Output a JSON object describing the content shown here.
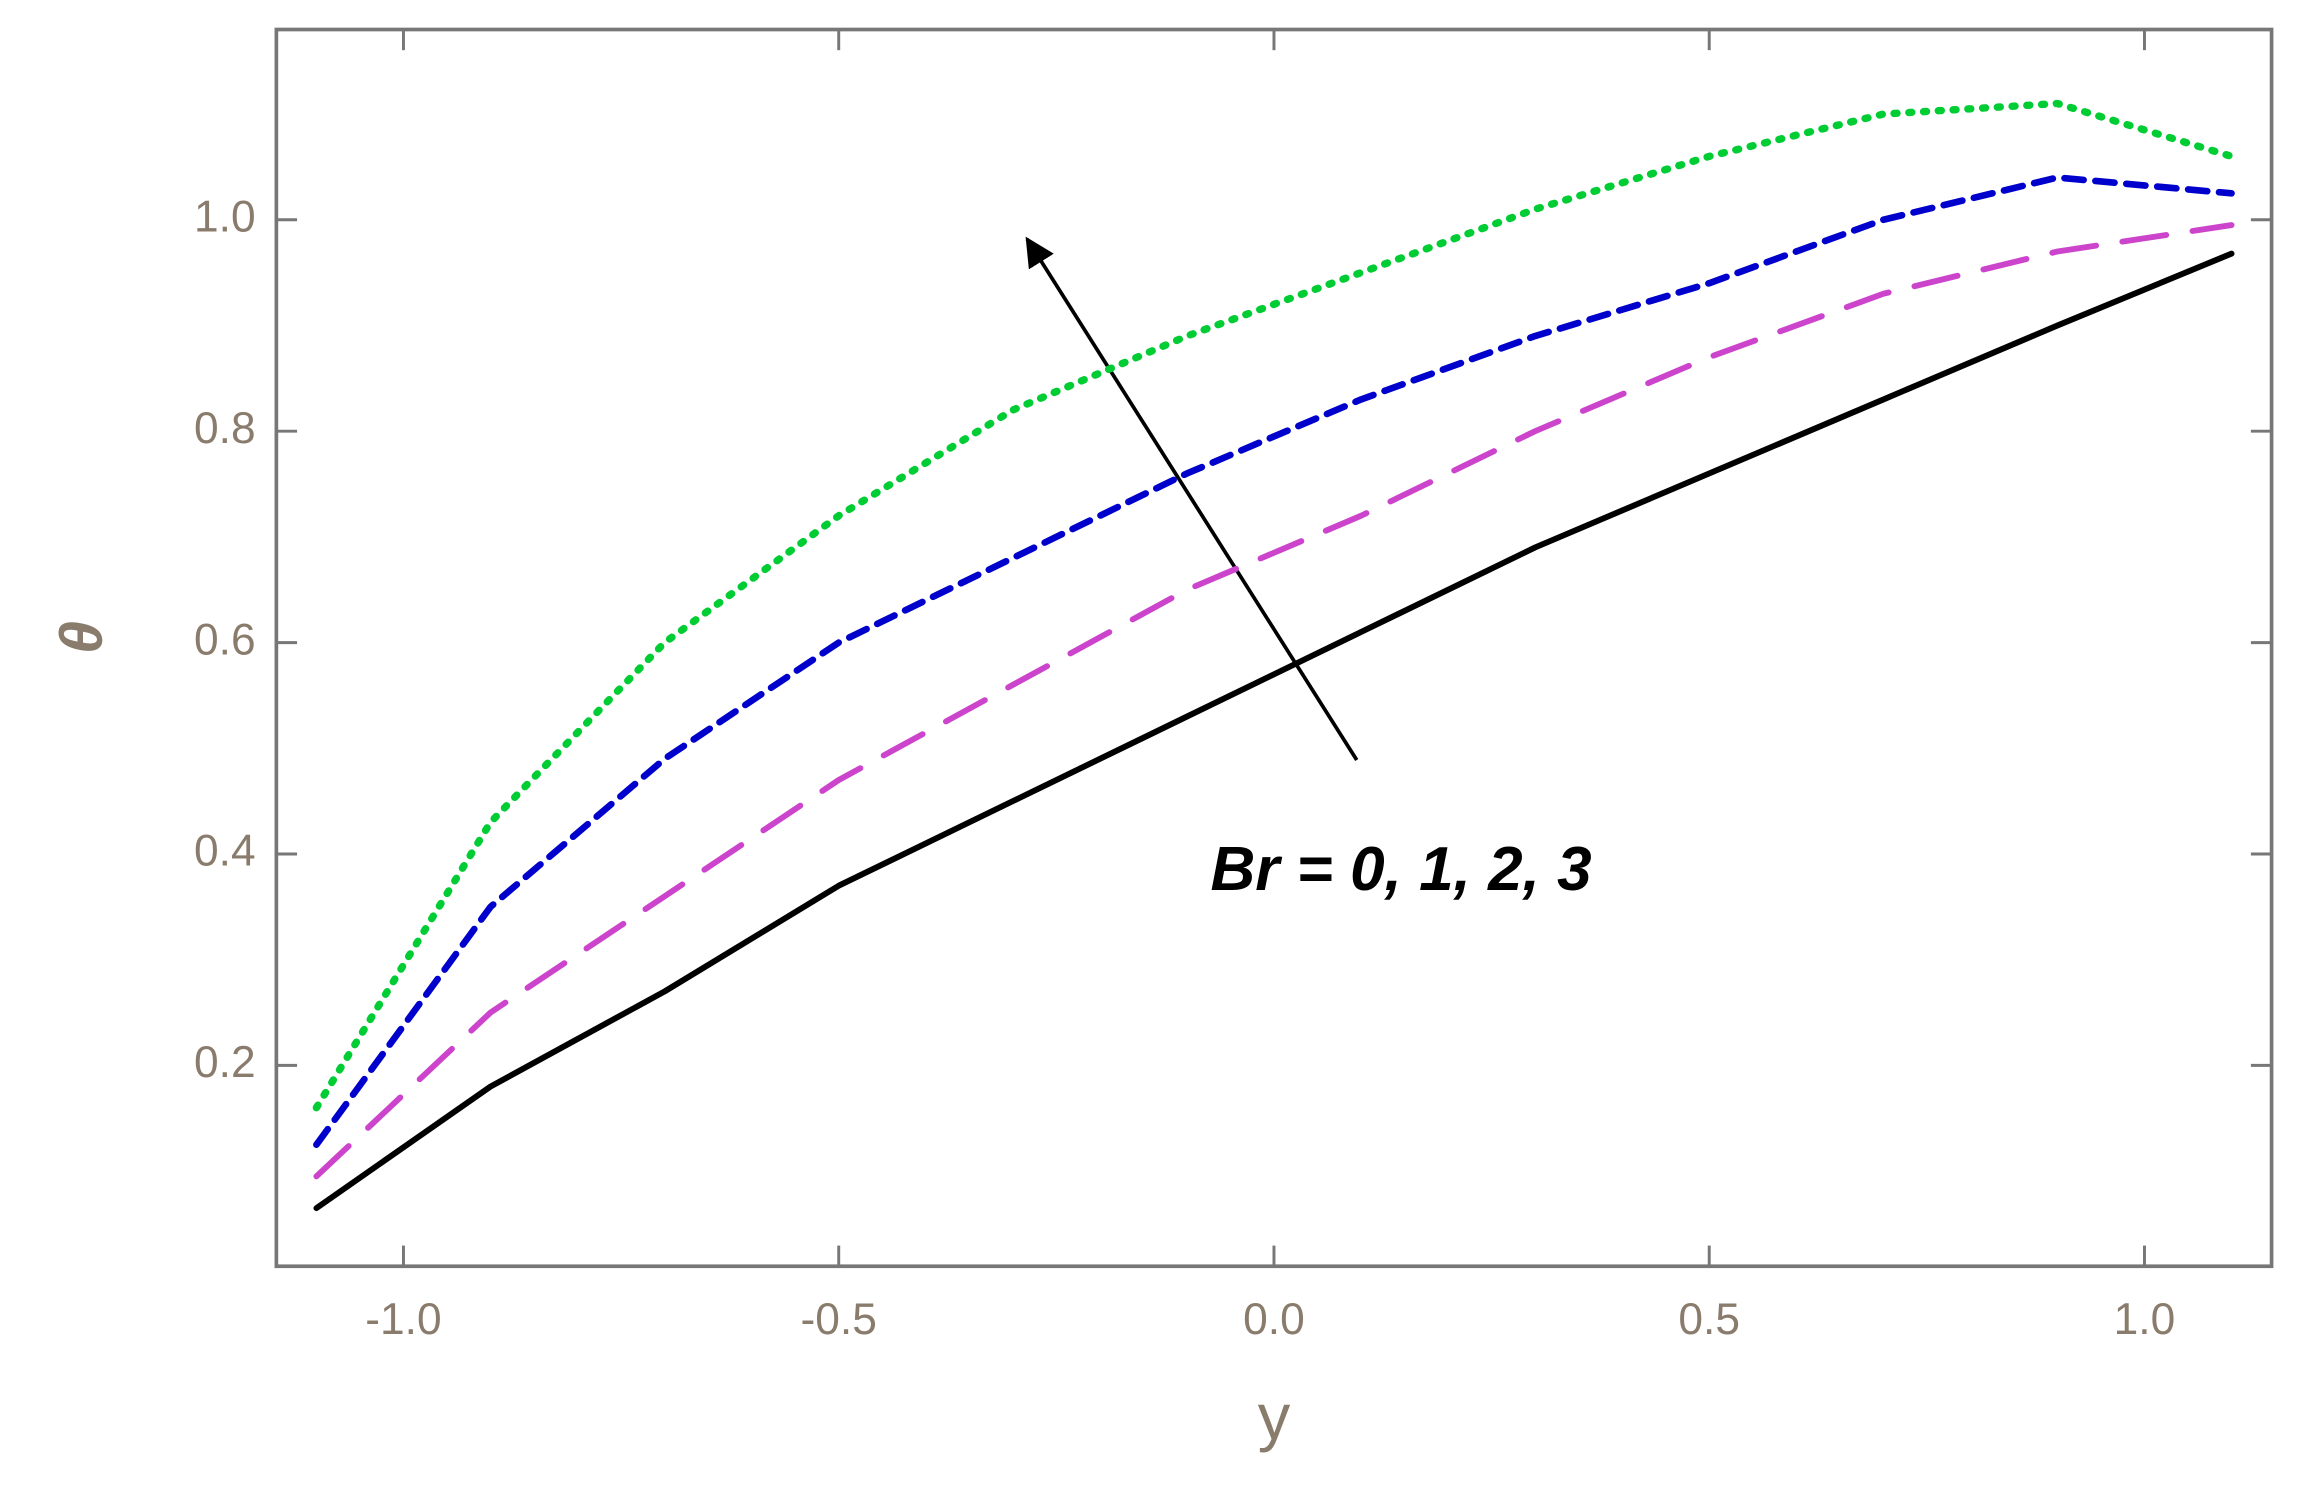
{
  "chart_data": {
    "type": "line",
    "x_label": "y",
    "y_label": "θ",
    "annotation": "Br = 0, 1, 2, 3",
    "x": [
      -1.1,
      -0.9,
      -0.7,
      -0.5,
      -0.3,
      -0.1,
      0.1,
      0.3,
      0.5,
      0.7,
      0.9,
      1.1
    ],
    "series": [
      {
        "color": "#000000",
        "values": [
          0.065,
          0.18,
          0.27,
          0.37,
          0.45,
          0.53,
          0.61,
          0.69,
          0.76,
          0.83,
          0.9,
          0.968
        ]
      },
      {
        "color": "#cc44cc",
        "values": [
          0.095,
          0.25,
          0.36,
          0.47,
          0.56,
          0.65,
          0.72,
          0.8,
          0.87,
          0.93,
          0.97,
          0.995
        ]
      },
      {
        "color": "#0000cc",
        "values": [
          0.125,
          0.35,
          0.49,
          0.6,
          0.68,
          0.76,
          0.83,
          0.89,
          0.94,
          1.0,
          1.04,
          1.025
        ]
      },
      {
        "color": "#00cc33",
        "values": [
          0.16,
          0.43,
          0.6,
          0.72,
          0.82,
          0.89,
          0.95,
          1.01,
          1.06,
          1.1,
          1.11,
          1.06
        ]
      }
    ],
    "xlim": [
      -1.146,
      1.146
    ],
    "ylim": [
      0.01,
      1.18
    ],
    "xticks": [
      {
        "value": -1,
        "label": "-1.0"
      },
      -0.5,
      {
        "value": 0,
        "label": "0.0"
      },
      0.5,
      {
        "value": 1,
        "label": "1.0"
      }
    ],
    "yticks": [
      0.2,
      0.4,
      0.6,
      0.8,
      {
        "value": 1,
        "label": "1.0"
      }
    ]
  }
}
